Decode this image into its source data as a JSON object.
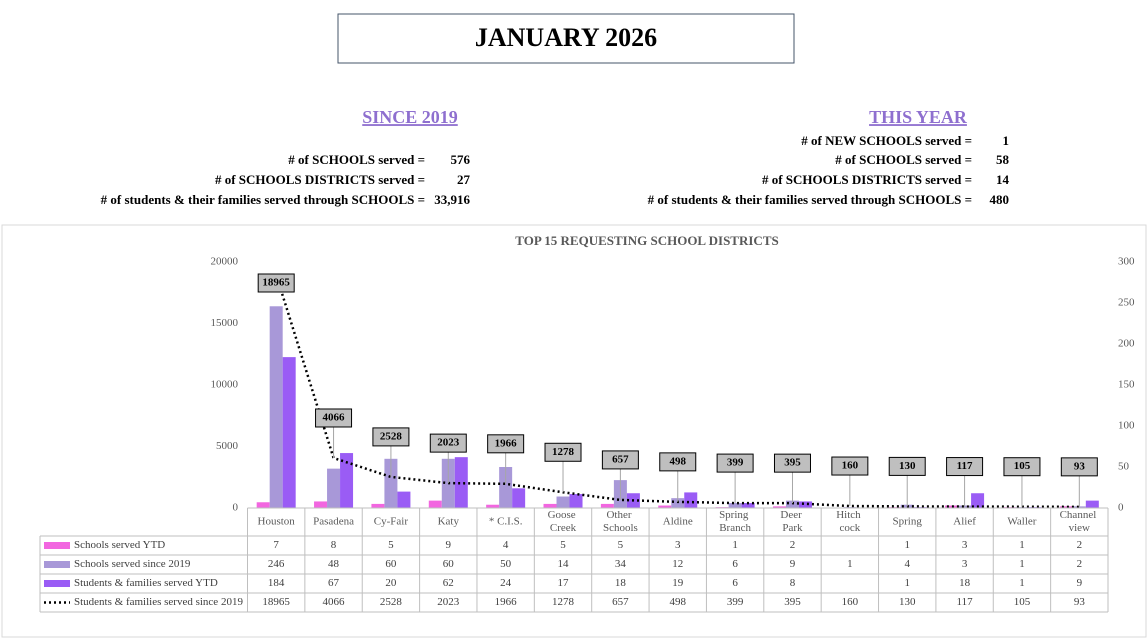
{
  "header": {
    "title": "JANUARY 2026"
  },
  "since_2019": {
    "heading": "SINCE 2019",
    "rows": [
      {
        "label": "# of SCHOOLS served =",
        "value": "576"
      },
      {
        "label": "# of SCHOOLS DISTRICTS served =",
        "value": "27"
      },
      {
        "label": "# of students & their families served through SCHOOLS =",
        "value": "33,916"
      }
    ]
  },
  "this_year": {
    "heading": "THIS YEAR",
    "rows": [
      {
        "label": "# of NEW SCHOOLS served =",
        "value": "1"
      },
      {
        "label": "# of SCHOOLS served =",
        "value": "58"
      },
      {
        "label": "# of SCHOOLS DISTRICTS served =",
        "value": "14"
      },
      {
        "label": "# of students & their families served through SCHOOLS =",
        "value": "480"
      }
    ]
  },
  "chart_data": {
    "type": "bar",
    "title": "TOP 15 REQUESTING SCHOOL DISTRICTS",
    "categories": [
      "Houston",
      "Pasadena",
      "Cy-Fair",
      "Katy",
      "* C.I.S.",
      "Goose Creek",
      "Other Schools",
      "Aldine",
      "Spring Branch",
      "Deer Park",
      "Hitch cock",
      "Spring",
      "Alief",
      "Waller",
      "Channel view"
    ],
    "series": [
      {
        "name": "Schools served YTD",
        "type": "bar",
        "axis": "y2",
        "color": "#f266e0",
        "values": [
          7,
          8,
          5,
          9,
          4,
          5,
          5,
          3,
          1,
          2,
          null,
          1,
          3,
          1,
          2
        ]
      },
      {
        "name": "Schools served since 2019",
        "type": "bar",
        "axis": "y2",
        "color": "#a898d8",
        "values": [
          246,
          48,
          60,
          60,
          50,
          14,
          34,
          12,
          6,
          9,
          1,
          4,
          3,
          1,
          2
        ]
      },
      {
        "name": "Students & families served YTD",
        "type": "bar",
        "axis": "y2",
        "color": "#9a5cf5",
        "values": [
          184,
          67,
          20,
          62,
          24,
          17,
          18,
          19,
          6,
          8,
          null,
          1,
          18,
          1,
          9
        ]
      },
      {
        "name": "Students & families served since 2019",
        "type": "line",
        "color": "#000000",
        "data_labels": true,
        "values": [
          18965,
          4066,
          2528,
          2023,
          1966,
          1278,
          657,
          498,
          399,
          395,
          160,
          130,
          117,
          105,
          93
        ]
      }
    ],
    "ylim": [
      0,
      20000
    ],
    "yticks": [
      0,
      5000,
      10000,
      15000,
      20000
    ],
    "y2lim": [
      0,
      300
    ],
    "y2ticks": [
      0,
      50,
      100,
      150,
      200,
      250,
      300
    ]
  }
}
